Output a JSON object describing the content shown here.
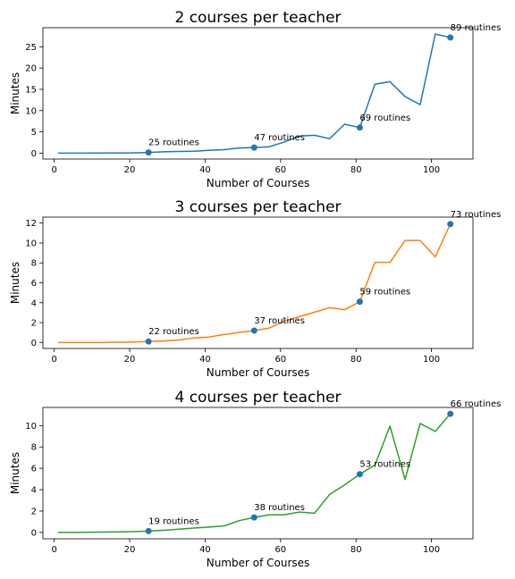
{
  "chart_data": [
    {
      "type": "line",
      "title": "2 courses per teacher",
      "xlabel": "Number of Courses",
      "ylabel": "Minutes",
      "color": "#1f77b4",
      "xlim": [
        -3,
        111
      ],
      "ylim": [
        -1.4,
        29.5
      ],
      "xticks": [
        0,
        20,
        40,
        60,
        80,
        100
      ],
      "yticks": [
        0,
        5,
        10,
        15,
        20,
        25
      ],
      "x": [
        1,
        5,
        9,
        13,
        17,
        21,
        25,
        29,
        33,
        37,
        41,
        45,
        49,
        53,
        57,
        61,
        65,
        69,
        73,
        77,
        81,
        85,
        89,
        93,
        97,
        101,
        105
      ],
      "y": [
        0.0,
        0.0,
        0.0,
        0.02,
        0.03,
        0.05,
        0.15,
        0.3,
        0.4,
        0.45,
        0.65,
        0.8,
        1.2,
        1.3,
        1.5,
        2.6,
        4.0,
        4.2,
        3.4,
        6.8,
        6.0,
        16.2,
        16.8,
        13.3,
        11.4,
        28.0,
        27.2
      ],
      "markers": [
        {
          "x": 25,
          "y": 0.15,
          "label": "25 routines"
        },
        {
          "x": 53,
          "y": 1.3,
          "label": "47 routines"
        },
        {
          "x": 81,
          "y": 6.0,
          "label": "69 routines"
        },
        {
          "x": 105,
          "y": 27.2,
          "label": "89 routines"
        }
      ]
    },
    {
      "type": "line",
      "title": "3 courses per teacher",
      "xlabel": "Number of Courses",
      "ylabel": "Minutes",
      "color": "#ff7f0e",
      "xlim": [
        -3,
        111
      ],
      "ylim": [
        -0.6,
        12.6
      ],
      "xticks": [
        0,
        20,
        40,
        60,
        80,
        100
      ],
      "yticks": [
        0,
        2,
        4,
        6,
        8,
        10,
        12
      ],
      "x": [
        1,
        5,
        9,
        13,
        17,
        21,
        25,
        29,
        33,
        37,
        41,
        45,
        49,
        53,
        57,
        61,
        65,
        69,
        73,
        77,
        81,
        85,
        89,
        93,
        97,
        101,
        105
      ],
      "y": [
        0.0,
        0.0,
        0.0,
        0.0,
        0.02,
        0.05,
        0.1,
        0.15,
        0.25,
        0.45,
        0.55,
        0.8,
        1.0,
        1.2,
        1.45,
        2.15,
        2.6,
        3.05,
        3.5,
        3.3,
        4.1,
        8.05,
        8.05,
        10.25,
        10.25,
        8.6,
        11.9
      ],
      "markers": [
        {
          "x": 25,
          "y": 0.1,
          "label": "22 routines"
        },
        {
          "x": 53,
          "y": 1.2,
          "label": "37 routines"
        },
        {
          "x": 81,
          "y": 4.1,
          "label": "59 routines"
        },
        {
          "x": 105,
          "y": 11.9,
          "label": "73 routines"
        }
      ]
    },
    {
      "type": "line",
      "title": "4 courses per teacher",
      "xlabel": "Number of Courses",
      "ylabel": "Minutes",
      "color": "#2ca02c",
      "xlim": [
        -3,
        111
      ],
      "ylim": [
        -0.6,
        11.7
      ],
      "xticks": [
        0,
        20,
        40,
        60,
        80,
        100
      ],
      "yticks": [
        0,
        2,
        4,
        6,
        8,
        10
      ],
      "x": [
        1,
        5,
        9,
        13,
        17,
        21,
        25,
        29,
        33,
        37,
        41,
        45,
        49,
        53,
        57,
        61,
        65,
        69,
        73,
        77,
        81,
        85,
        89,
        93,
        97,
        101,
        105
      ],
      "y": [
        0.0,
        0.0,
        0.02,
        0.03,
        0.05,
        0.07,
        0.12,
        0.2,
        0.3,
        0.4,
        0.5,
        0.6,
        1.1,
        1.4,
        1.65,
        1.65,
        1.9,
        1.8,
        3.55,
        4.45,
        5.45,
        6.3,
        9.95,
        4.95,
        10.2,
        9.45,
        11.1
      ],
      "markers": [
        {
          "x": 25,
          "y": 0.12,
          "label": "19 routines"
        },
        {
          "x": 53,
          "y": 1.4,
          "label": "38 routines"
        },
        {
          "x": 81,
          "y": 5.45,
          "label": "53 routines"
        },
        {
          "x": 105,
          "y": 11.1,
          "label": "66 routines"
        }
      ]
    }
  ],
  "marker_color": "#1f77b4"
}
